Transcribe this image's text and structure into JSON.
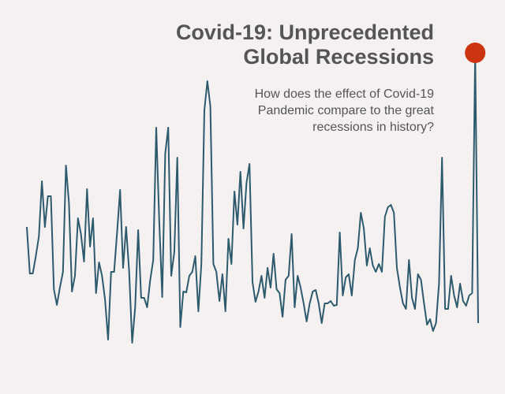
{
  "chart_data": {
    "type": "line",
    "title": [
      "Covid-19: Unprecedented",
      "Global Recessions"
    ],
    "subtitle": [
      "How does the effect of Covid-19",
      "Pandemic compare to the great",
      "recessions in history?"
    ],
    "color": "#2e5a6e",
    "marker_color": "#cc3311",
    "ylim": [
      0,
      400
    ],
    "values": [
      162,
      103,
      103,
      125,
      150,
      220,
      162,
      201,
      201,
      83,
      63,
      85,
      105,
      240,
      192,
      80,
      100,
      173,
      153,
      118,
      210,
      137,
      173,
      78,
      117,
      100,
      70,
      19,
      105,
      105,
      155,
      209,
      110,
      162,
      105,
      15,
      60,
      158,
      72,
      72,
      60,
      94,
      120,
      288,
      170,
      73,
      255,
      288,
      100,
      130,
      250,
      35,
      80,
      79,
      100,
      105,
      125,
      55,
      115,
      310,
      347,
      315,
      115,
      105,
      68,
      102,
      55,
      147,
      115,
      207,
      165,
      232,
      160,
      218,
      242,
      92,
      67,
      80,
      100,
      72,
      110,
      85,
      128,
      83,
      78,
      48,
      95,
      100,
      153,
      60,
      100,
      85,
      65,
      42,
      65,
      80,
      82,
      65,
      40,
      65,
      65,
      68,
      62,
      63,
      155,
      75,
      98,
      102,
      75,
      120,
      135,
      180,
      160,
      113,
      135,
      113,
      105,
      115,
      105,
      175,
      187,
      190,
      180,
      110,
      85,
      65,
      58,
      120,
      72,
      58,
      102,
      95,
      65,
      38,
      45,
      30,
      40,
      90,
      250,
      58,
      58,
      100,
      75,
      60,
      90,
      68,
      62,
      75,
      78,
      383,
      40
    ]
  }
}
